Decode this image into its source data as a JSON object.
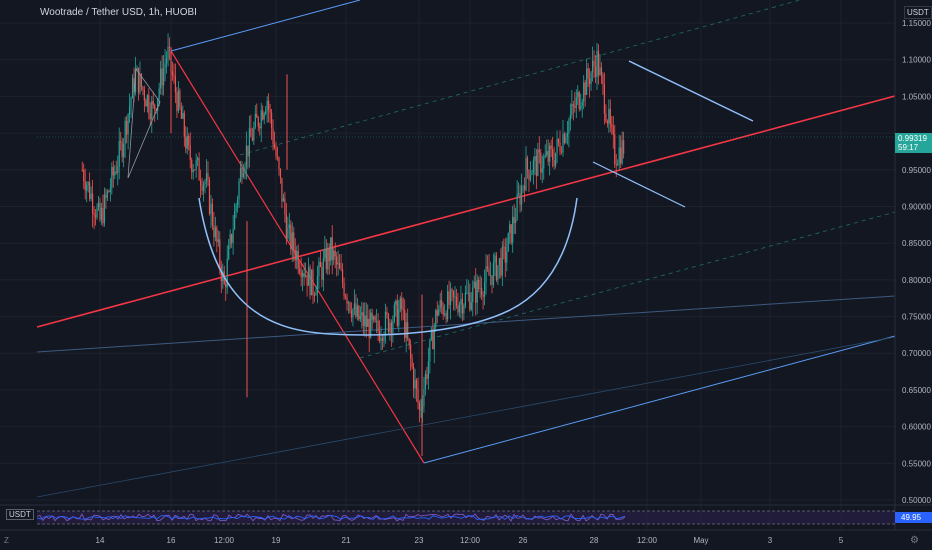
{
  "header": {
    "title": "Wootrade / Tether USD, 1h, HUOBI",
    "currency": "USDT"
  },
  "price_label": {
    "value": "0.99319",
    "countdown": "59:17",
    "color": "#26a69a"
  },
  "rsi_label": {
    "value": "49.95",
    "color": "#2962ff"
  },
  "scale_button": "USDT",
  "bottom_left_button": "Z",
  "bottom_right_icon": "settings-icon",
  "colors": {
    "background": "#131722",
    "grid": "#1e222d",
    "up": "#26a69a",
    "down": "#ef5350",
    "trendline_red": "#f23645",
    "trendline_blue": "#5b9cf6",
    "curve": "#90bff9"
  },
  "chart_data": {
    "type": "candlestick",
    "title": "Wootrade / Tether USD, 1h, HUOBI",
    "y_ticks": [
      "1.15000",
      "1.10000",
      "1.05000",
      "1.00000",
      "0.95000",
      "0.90000",
      "0.85000",
      "0.80000",
      "0.75000",
      "0.70000",
      "0.65000",
      "0.60000",
      "0.55000",
      "0.50000"
    ],
    "x_ticks": [
      "14",
      "16",
      "12:00",
      "19",
      "21",
      "23",
      "12:00",
      "26",
      "28",
      "12:00",
      "May",
      "3",
      "5"
    ],
    "ylim": [
      0.49,
      1.16
    ],
    "grid": true,
    "approx_ohlc_path": [
      {
        "day": 13.5,
        "price": 0.95
      },
      {
        "day": 14.0,
        "price": 0.88
      },
      {
        "day": 14.6,
        "price": 0.98
      },
      {
        "day": 15.0,
        "price": 1.08
      },
      {
        "day": 15.5,
        "price": 1.03
      },
      {
        "day": 15.9,
        "price": 1.11
      },
      {
        "day": 16.5,
        "price": 0.97
      },
      {
        "day": 17.0,
        "price": 0.93
      },
      {
        "day": 17.5,
        "price": 0.79
      },
      {
        "day": 18.0,
        "price": 0.96
      },
      {
        "day": 18.7,
        "price": 1.05
      },
      {
        "day": 19.3,
        "price": 0.86
      },
      {
        "day": 20.0,
        "price": 0.79
      },
      {
        "day": 20.5,
        "price": 0.84
      },
      {
        "day": 21.2,
        "price": 0.75
      },
      {
        "day": 21.8,
        "price": 0.73
      },
      {
        "day": 22.5,
        "price": 0.76
      },
      {
        "day": 23.0,
        "price": 0.62
      },
      {
        "day": 23.5,
        "price": 0.76
      },
      {
        "day": 24.5,
        "price": 0.78
      },
      {
        "day": 25.4,
        "price": 0.83
      },
      {
        "day": 26.0,
        "price": 0.95
      },
      {
        "day": 26.8,
        "price": 0.97
      },
      {
        "day": 27.5,
        "price": 1.05
      },
      {
        "day": 28.0,
        "price": 1.1
      },
      {
        "day": 28.5,
        "price": 0.97
      },
      {
        "day": 29.0,
        "price": 0.993
      }
    ]
  }
}
